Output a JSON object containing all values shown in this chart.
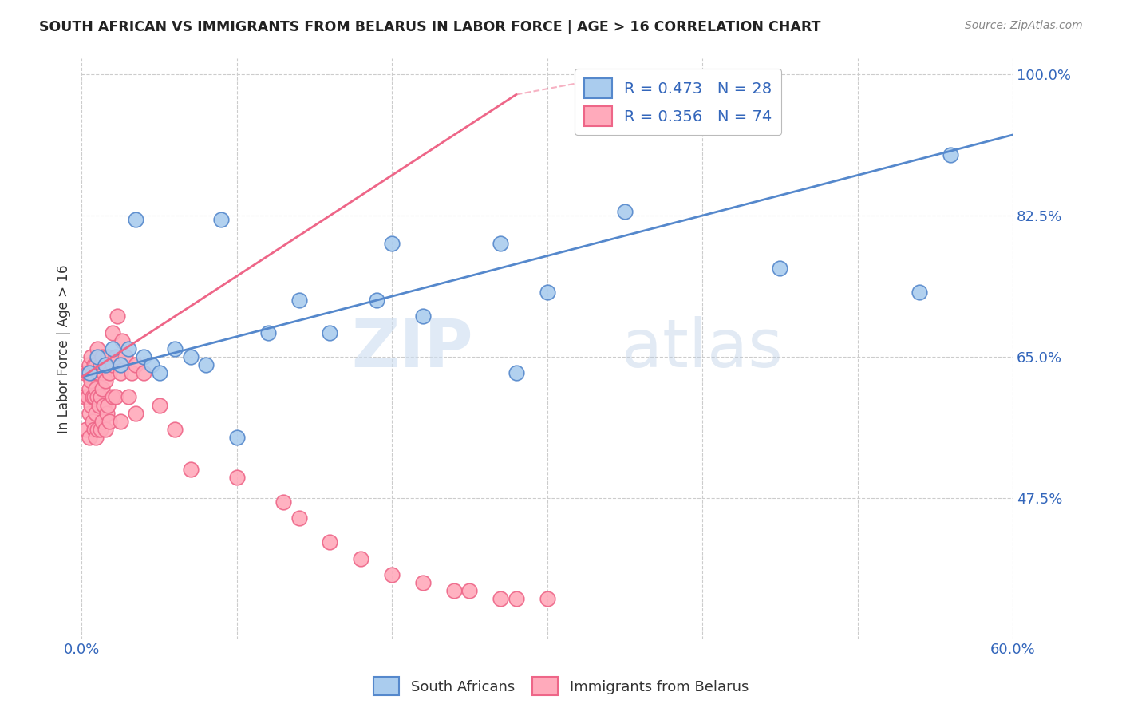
{
  "title": "SOUTH AFRICAN VS IMMIGRANTS FROM BELARUS IN LABOR FORCE | AGE > 16 CORRELATION CHART",
  "source": "Source: ZipAtlas.com",
  "ylabel": "In Labor Force | Age > 16",
  "x_min": 0.0,
  "x_max": 0.6,
  "y_min": 0.3,
  "y_max": 1.02,
  "x_tick_positions": [
    0.0,
    0.1,
    0.2,
    0.3,
    0.4,
    0.5,
    0.6
  ],
  "x_tick_labels": [
    "0.0%",
    "",
    "",
    "",
    "",
    "",
    "60.0%"
  ],
  "y_ticks": [
    0.475,
    0.65,
    0.825,
    1.0
  ],
  "y_tick_labels": [
    "47.5%",
    "65.0%",
    "82.5%",
    "100.0%"
  ],
  "grid_color": "#cccccc",
  "background_color": "#ffffff",
  "blue_edge": "#5588cc",
  "pink_edge": "#ee6688",
  "blue_fill": "#aaccee",
  "pink_fill": "#ffaabb",
  "R_blue": 0.473,
  "N_blue": 28,
  "R_pink": 0.356,
  "N_pink": 74,
  "legend_text_color": "#3366bb",
  "watermark_zip": "ZIP",
  "watermark_atlas": "atlas",
  "south_africans_x": [
    0.005,
    0.01,
    0.015,
    0.02,
    0.025,
    0.03,
    0.035,
    0.04,
    0.045,
    0.05,
    0.06,
    0.07,
    0.08,
    0.09,
    0.1,
    0.12,
    0.14,
    0.16,
    0.19,
    0.2,
    0.22,
    0.27,
    0.28,
    0.3,
    0.35,
    0.45,
    0.54,
    0.56
  ],
  "south_africans_y": [
    0.63,
    0.65,
    0.64,
    0.66,
    0.64,
    0.66,
    0.82,
    0.65,
    0.64,
    0.63,
    0.66,
    0.65,
    0.64,
    0.82,
    0.55,
    0.68,
    0.72,
    0.68,
    0.72,
    0.79,
    0.7,
    0.79,
    0.63,
    0.73,
    0.83,
    0.76,
    0.73,
    0.9
  ],
  "belarus_x": [
    0.002,
    0.002,
    0.003,
    0.004,
    0.004,
    0.005,
    0.005,
    0.005,
    0.005,
    0.006,
    0.006,
    0.006,
    0.007,
    0.007,
    0.007,
    0.008,
    0.008,
    0.008,
    0.009,
    0.009,
    0.009,
    0.009,
    0.01,
    0.01,
    0.01,
    0.01,
    0.011,
    0.011,
    0.012,
    0.012,
    0.012,
    0.013,
    0.013,
    0.013,
    0.014,
    0.014,
    0.015,
    0.015,
    0.016,
    0.016,
    0.017,
    0.017,
    0.018,
    0.018,
    0.02,
    0.02,
    0.02,
    0.022,
    0.022,
    0.023,
    0.025,
    0.025,
    0.026,
    0.028,
    0.03,
    0.032,
    0.035,
    0.035,
    0.04,
    0.05,
    0.06,
    0.07,
    0.1,
    0.13,
    0.14,
    0.16,
    0.18,
    0.2,
    0.22,
    0.24,
    0.25,
    0.27,
    0.28,
    0.3
  ],
  "belarus_y": [
    0.6,
    0.63,
    0.56,
    0.6,
    0.63,
    0.55,
    0.58,
    0.61,
    0.64,
    0.59,
    0.62,
    0.65,
    0.57,
    0.6,
    0.63,
    0.56,
    0.6,
    0.64,
    0.55,
    0.58,
    0.61,
    0.64,
    0.56,
    0.6,
    0.63,
    0.66,
    0.59,
    0.63,
    0.56,
    0.6,
    0.64,
    0.57,
    0.61,
    0.65,
    0.59,
    0.63,
    0.56,
    0.62,
    0.58,
    0.64,
    0.59,
    0.65,
    0.57,
    0.63,
    0.6,
    0.64,
    0.68,
    0.6,
    0.65,
    0.7,
    0.57,
    0.63,
    0.67,
    0.65,
    0.6,
    0.63,
    0.58,
    0.64,
    0.63,
    0.59,
    0.56,
    0.51,
    0.5,
    0.47,
    0.45,
    0.42,
    0.4,
    0.38,
    0.37,
    0.36,
    0.36,
    0.35,
    0.35,
    0.35
  ]
}
